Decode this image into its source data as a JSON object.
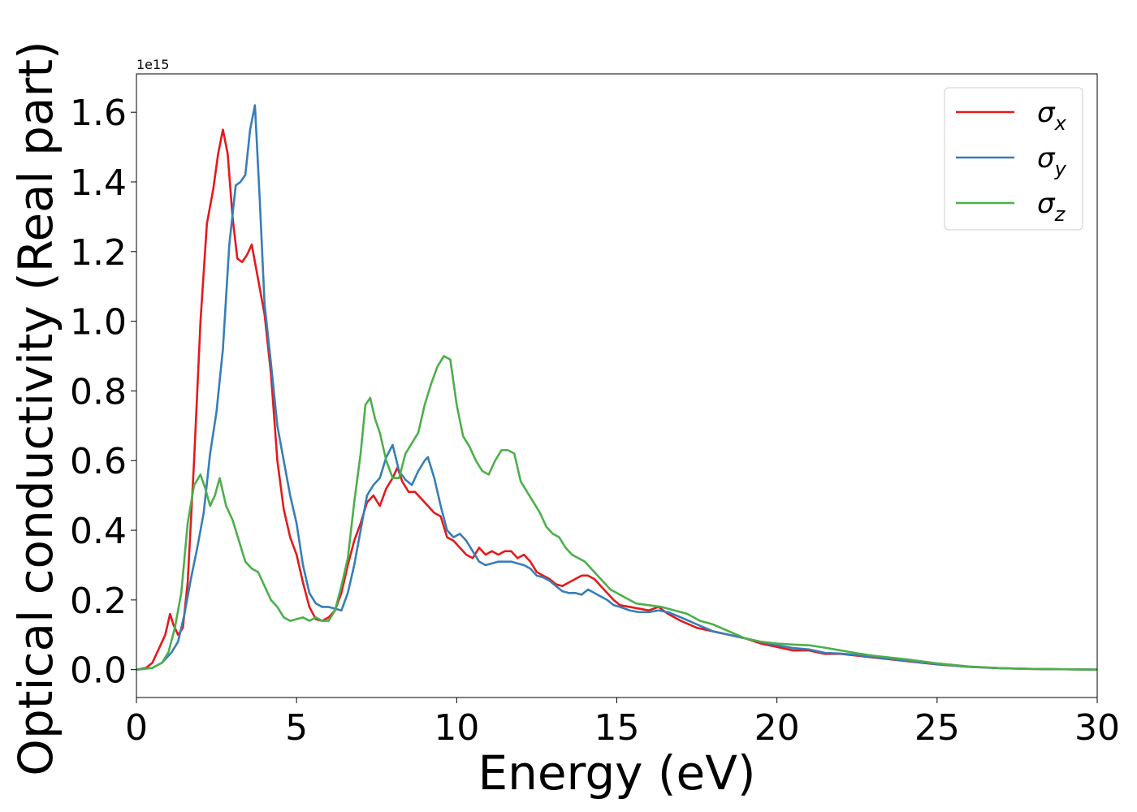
{
  "chart_data": {
    "type": "line",
    "xlabel": "Energy (eV)",
    "ylabel": "Optical conductivity (Real part)",
    "y_offset_label": "1e15",
    "xlim": [
      0,
      30
    ],
    "ylim": [
      -0.08,
      1.71
    ],
    "x_ticks": [
      0,
      5,
      10,
      15,
      20,
      25,
      30
    ],
    "x_tick_labels": [
      "0",
      "5",
      "10",
      "15",
      "20",
      "25",
      "30"
    ],
    "y_ticks": [
      0.0,
      0.2,
      0.4,
      0.6,
      0.8,
      1.0,
      1.2,
      1.4,
      1.6
    ],
    "y_tick_labels": [
      "0.0",
      "0.2",
      "0.4",
      "0.6",
      "0.8",
      "1.0",
      "1.2",
      "1.4",
      "1.6"
    ],
    "grid": false,
    "legend_position": "top-right",
    "series": [
      {
        "name": "σx",
        "symbol": "σ",
        "subscript": "x",
        "color": "#e41a1c",
        "x": [
          0,
          0.3,
          0.5,
          0.7,
          0.9,
          1.05,
          1.15,
          1.3,
          1.45,
          1.6,
          1.8,
          2.0,
          2.2,
          2.4,
          2.55,
          2.7,
          2.85,
          3.0,
          3.15,
          3.3,
          3.45,
          3.6,
          3.8,
          4.0,
          4.2,
          4.4,
          4.6,
          4.8,
          5.0,
          5.2,
          5.4,
          5.6,
          5.8,
          6.0,
          6.2,
          6.4,
          6.6,
          6.8,
          7.0,
          7.2,
          7.4,
          7.6,
          7.8,
          8.0,
          8.15,
          8.3,
          8.5,
          8.7,
          8.9,
          9.1,
          9.3,
          9.5,
          9.7,
          9.9,
          10.1,
          10.3,
          10.5,
          10.7,
          10.9,
          11.1,
          11.3,
          11.5,
          11.7,
          11.9,
          12.1,
          12.3,
          12.5,
          12.7,
          12.9,
          13.1,
          13.3,
          13.5,
          13.7,
          13.9,
          14.1,
          14.3,
          14.5,
          14.7,
          14.9,
          15.1,
          15.4,
          15.7,
          16.0,
          16.3,
          16.6,
          17.0,
          17.5,
          18.0,
          18.5,
          19.0,
          19.5,
          20.0,
          20.5,
          21.0,
          21.5,
          22.0,
          22.5,
          23.0,
          24.0,
          25.0,
          26.0,
          27.0,
          28.0,
          29.0,
          30.0
        ],
        "y": [
          0.0,
          0.005,
          0.02,
          0.06,
          0.1,
          0.16,
          0.13,
          0.1,
          0.12,
          0.25,
          0.6,
          1.0,
          1.28,
          1.38,
          1.48,
          1.55,
          1.48,
          1.3,
          1.18,
          1.17,
          1.19,
          1.22,
          1.12,
          1.02,
          0.85,
          0.6,
          0.46,
          0.38,
          0.33,
          0.25,
          0.18,
          0.145,
          0.14,
          0.15,
          0.17,
          0.22,
          0.3,
          0.37,
          0.42,
          0.48,
          0.5,
          0.47,
          0.52,
          0.55,
          0.58,
          0.54,
          0.51,
          0.51,
          0.49,
          0.47,
          0.45,
          0.44,
          0.38,
          0.37,
          0.35,
          0.33,
          0.32,
          0.35,
          0.33,
          0.34,
          0.33,
          0.34,
          0.34,
          0.32,
          0.33,
          0.31,
          0.28,
          0.27,
          0.26,
          0.245,
          0.24,
          0.25,
          0.26,
          0.27,
          0.27,
          0.26,
          0.24,
          0.22,
          0.2,
          0.185,
          0.18,
          0.175,
          0.17,
          0.18,
          0.16,
          0.14,
          0.12,
          0.11,
          0.1,
          0.09,
          0.075,
          0.065,
          0.055,
          0.055,
          0.045,
          0.045,
          0.04,
          0.035,
          0.025,
          0.015,
          0.008,
          0.004,
          0.002,
          0.001,
          0.0
        ]
      },
      {
        "name": "σy",
        "symbol": "σ",
        "subscript": "y",
        "color": "#377eb8",
        "x": [
          0,
          0.5,
          0.8,
          1.1,
          1.3,
          1.5,
          1.7,
          1.9,
          2.1,
          2.3,
          2.5,
          2.7,
          2.9,
          3.1,
          3.25,
          3.4,
          3.55,
          3.7,
          3.85,
          4.0,
          4.2,
          4.4,
          4.6,
          4.8,
          5.0,
          5.2,
          5.4,
          5.6,
          5.8,
          6.0,
          6.2,
          6.4,
          6.6,
          6.8,
          7.0,
          7.2,
          7.4,
          7.6,
          7.8,
          8.0,
          8.2,
          8.4,
          8.6,
          8.8,
          9.0,
          9.1,
          9.3,
          9.5,
          9.7,
          9.9,
          10.1,
          10.3,
          10.5,
          10.7,
          10.9,
          11.1,
          11.3,
          11.5,
          11.7,
          11.9,
          12.1,
          12.3,
          12.5,
          12.7,
          12.9,
          13.1,
          13.3,
          13.5,
          13.7,
          13.9,
          14.1,
          14.3,
          14.5,
          14.7,
          14.9,
          15.1,
          15.4,
          15.7,
          16.0,
          16.3,
          16.6,
          17.0,
          17.5,
          18.0,
          18.5,
          19.0,
          19.5,
          20.0,
          20.5,
          21.0,
          21.5,
          22.0,
          22.5,
          23.0,
          24.0,
          25.0,
          26.0,
          27.0,
          28.0,
          29.0,
          30.0
        ],
        "y": [
          0.0,
          0.005,
          0.02,
          0.05,
          0.08,
          0.16,
          0.26,
          0.35,
          0.45,
          0.62,
          0.74,
          0.92,
          1.22,
          1.39,
          1.4,
          1.42,
          1.55,
          1.62,
          1.35,
          1.05,
          0.88,
          0.7,
          0.6,
          0.5,
          0.42,
          0.3,
          0.22,
          0.19,
          0.18,
          0.18,
          0.175,
          0.17,
          0.22,
          0.3,
          0.4,
          0.5,
          0.53,
          0.55,
          0.61,
          0.645,
          0.57,
          0.545,
          0.53,
          0.57,
          0.6,
          0.61,
          0.55,
          0.47,
          0.4,
          0.38,
          0.39,
          0.37,
          0.34,
          0.31,
          0.3,
          0.305,
          0.31,
          0.31,
          0.31,
          0.305,
          0.3,
          0.29,
          0.27,
          0.265,
          0.255,
          0.24,
          0.225,
          0.22,
          0.22,
          0.215,
          0.23,
          0.22,
          0.21,
          0.2,
          0.185,
          0.18,
          0.17,
          0.165,
          0.165,
          0.17,
          0.165,
          0.15,
          0.13,
          0.11,
          0.1,
          0.09,
          0.08,
          0.07,
          0.062,
          0.058,
          0.048,
          0.046,
          0.042,
          0.036,
          0.026,
          0.016,
          0.008,
          0.004,
          0.002,
          0.001,
          0.0
        ]
      },
      {
        "name": "σz",
        "symbol": "σ",
        "subscript": "z",
        "color": "#4daf4a",
        "x": [
          0,
          0.5,
          0.8,
          1.0,
          1.2,
          1.4,
          1.6,
          1.8,
          2.0,
          2.15,
          2.3,
          2.45,
          2.6,
          2.8,
          3.0,
          3.2,
          3.4,
          3.6,
          3.8,
          4.0,
          4.2,
          4.4,
          4.6,
          4.8,
          5.0,
          5.2,
          5.4,
          5.6,
          5.8,
          6.0,
          6.2,
          6.4,
          6.6,
          6.8,
          7.0,
          7.15,
          7.3,
          7.45,
          7.6,
          7.8,
          8.0,
          8.2,
          8.4,
          8.6,
          8.8,
          9.0,
          9.2,
          9.4,
          9.6,
          9.8,
          10.0,
          10.2,
          10.4,
          10.6,
          10.8,
          11.0,
          11.2,
          11.4,
          11.6,
          11.8,
          12.0,
          12.2,
          12.4,
          12.6,
          12.8,
          13.0,
          13.2,
          13.4,
          13.6,
          13.8,
          14.0,
          14.2,
          14.4,
          14.6,
          14.8,
          15.0,
          15.3,
          15.6,
          16.0,
          16.4,
          16.8,
          17.2,
          17.6,
          18.0,
          18.5,
          19.0,
          19.5,
          20.0,
          20.5,
          21.0,
          21.5,
          22.0,
          22.5,
          23.0,
          24.0,
          25.0,
          26.0,
          27.0,
          28.0,
          29.0,
          30.0
        ],
        "y": [
          0.0,
          0.005,
          0.02,
          0.05,
          0.12,
          0.22,
          0.42,
          0.53,
          0.56,
          0.52,
          0.47,
          0.5,
          0.55,
          0.47,
          0.43,
          0.37,
          0.31,
          0.29,
          0.28,
          0.24,
          0.2,
          0.18,
          0.15,
          0.14,
          0.145,
          0.15,
          0.14,
          0.15,
          0.14,
          0.14,
          0.17,
          0.24,
          0.32,
          0.48,
          0.62,
          0.76,
          0.78,
          0.72,
          0.68,
          0.6,
          0.55,
          0.55,
          0.62,
          0.65,
          0.68,
          0.76,
          0.82,
          0.87,
          0.9,
          0.89,
          0.76,
          0.67,
          0.64,
          0.6,
          0.57,
          0.56,
          0.6,
          0.63,
          0.63,
          0.62,
          0.54,
          0.51,
          0.48,
          0.45,
          0.41,
          0.39,
          0.38,
          0.35,
          0.33,
          0.32,
          0.31,
          0.29,
          0.27,
          0.25,
          0.23,
          0.22,
          0.205,
          0.19,
          0.185,
          0.18,
          0.17,
          0.16,
          0.14,
          0.13,
          0.11,
          0.09,
          0.08,
          0.075,
          0.072,
          0.07,
          0.063,
          0.055,
          0.047,
          0.04,
          0.03,
          0.018,
          0.009,
          0.004,
          0.002,
          0.001,
          0.0
        ]
      }
    ]
  }
}
